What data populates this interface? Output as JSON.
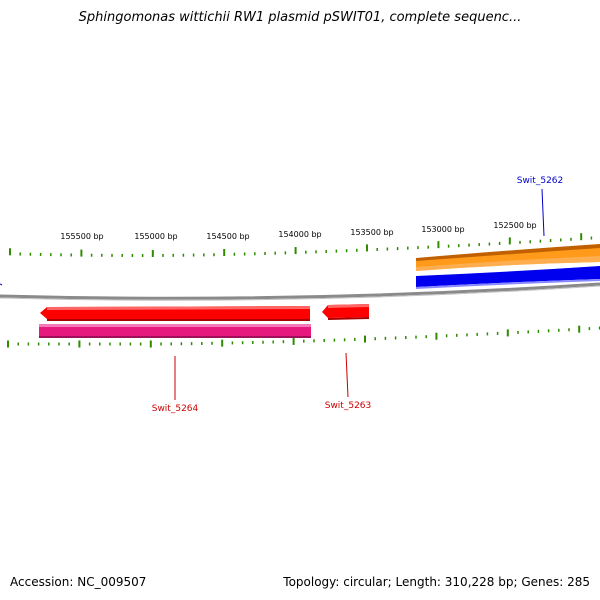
{
  "title": "Sphingomonas wittichii RW1 plasmid pSWIT01, complete sequenc...",
  "scale_labels": [
    "155500 bp",
    "155000 bp",
    "154500 bp",
    "154000 bp",
    "153500 bp",
    "153000 bp",
    "152500 bp"
  ],
  "genes": [
    {
      "name": "Swit_5262",
      "strand": "forward",
      "color": "#0000cc",
      "label_color": "#0000cc"
    },
    {
      "name": "Swit_5263",
      "strand": "reverse",
      "color": "#ff0000",
      "label_color": "#cc0000"
    },
    {
      "name": "Swit_5264",
      "strand": "reverse",
      "color": "#ff0000",
      "label_color": "#cc0000"
    }
  ],
  "feature_colors": {
    "backbone": "#888888",
    "ticks": "#2e8b00",
    "cds_forward": "#0000ee",
    "gene_forward": "#ff8c00",
    "cds_reverse": "#ff0000",
    "gene_reverse": "#e6197f"
  },
  "footer": {
    "accession": "Accession: NC_009507",
    "stats": "Topology: circular; Length: 310,228 bp; Genes: 285"
  }
}
